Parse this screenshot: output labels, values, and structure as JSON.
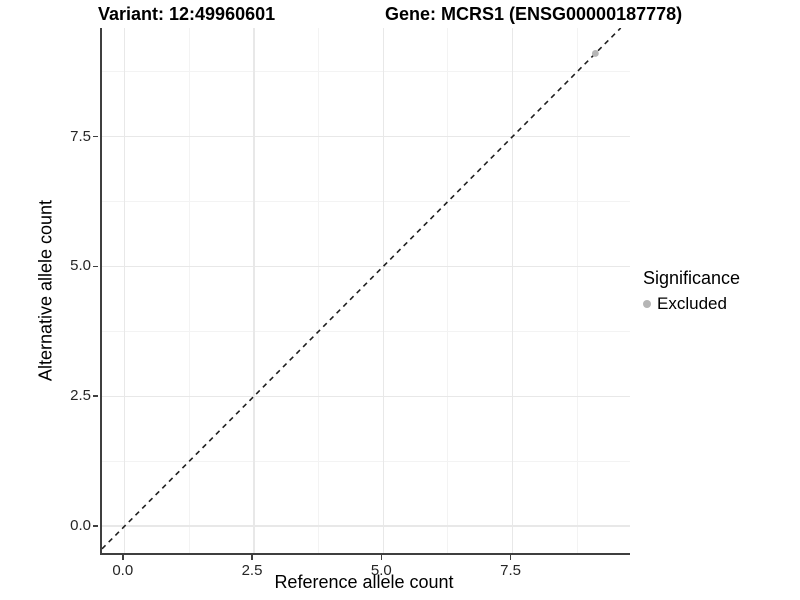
{
  "header": {
    "variant_title": "Variant: 12:49960601",
    "gene_title": "Gene: MCRS1 (ENSG00000187778)"
  },
  "legend": {
    "title": "Significance",
    "items": [
      {
        "label": "Excluded",
        "color": "#b5b5b5"
      }
    ]
  },
  "colors": {
    "background": "#ffffff",
    "axis_line": "#3f3f3f",
    "grid_major": "#e8e8e8",
    "grid_minor": "#f3f3f3",
    "tick_label": "#262626",
    "point": "#b5b5b5",
    "dashed_line": "#1f1f1f"
  },
  "chart_data": {
    "type": "scatter",
    "title": "Variant: 12:49960601        Gene: MCRS1 (ENSG00000187778)",
    "xlabel": "Reference allele count",
    "ylabel": "Alternative allele count",
    "xlim": [
      -0.44,
      9.77
    ],
    "ylim": [
      -0.52,
      9.59
    ],
    "x_ticks": [
      0.0,
      2.5,
      5.0,
      7.5
    ],
    "y_ticks": [
      0.0,
      2.5,
      5.0,
      7.5
    ],
    "x_tick_labels": [
      "0.0",
      "2.5",
      "5.0",
      "7.5"
    ],
    "y_tick_labels": [
      "0.0",
      "2.5",
      "5.0",
      "7.5"
    ],
    "x_minor_ticks": [
      1.25,
      3.75,
      6.25,
      8.75
    ],
    "y_minor_ticks": [
      1.25,
      3.75,
      6.25,
      8.75
    ],
    "grid": true,
    "legend_position": "right",
    "reference_line": {
      "style": "dashed",
      "slope": 1,
      "intercept": 0
    },
    "series": [
      {
        "name": "Excluded",
        "color": "#b5b5b5",
        "points": [
          {
            "x": 9.1,
            "y": 9.1
          }
        ]
      }
    ]
  }
}
